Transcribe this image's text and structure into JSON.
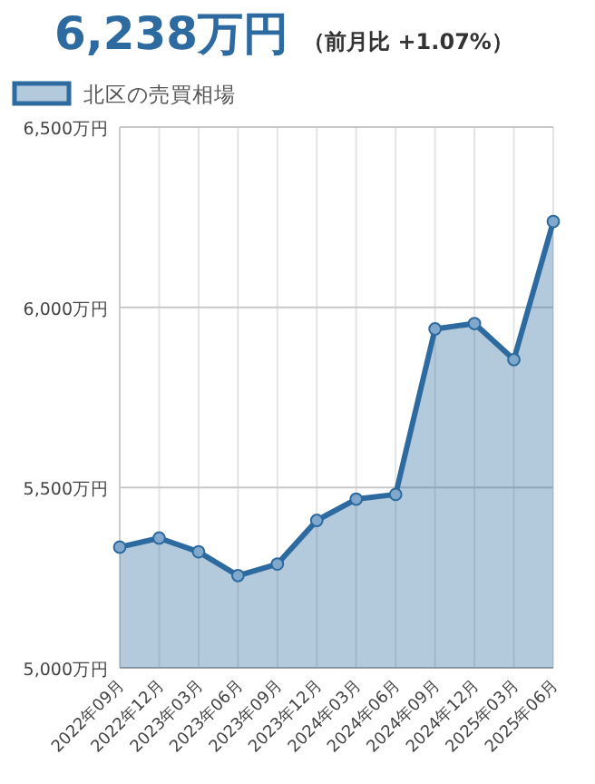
{
  "chart_data": {
    "type": "area",
    "title": "6,238万円",
    "subtitle": "（前月比 +1.07%）",
    "categories": [
      "2022年09月",
      "2022年12月",
      "2023年03月",
      "2023年06月",
      "2023年09月",
      "2023年12月",
      "2024年03月",
      "2024年06月",
      "2024年09月",
      "2024年12月",
      "2025年03月",
      "2025年06月"
    ],
    "series": [
      {
        "name": "北区の売買相場",
        "color": "#2c6a9f",
        "values": [
          5335,
          5360,
          5322,
          5256,
          5288,
          5409,
          5468,
          5481,
          5940,
          5955,
          5855,
          6238
        ]
      }
    ],
    "ylim": [
      5000,
      6500
    ],
    "yticks": [
      {
        "value": 5000,
        "label": "5,000万円"
      },
      {
        "value": 5500,
        "label": "5,500万円"
      },
      {
        "value": 6000,
        "label": "6,000万円"
      },
      {
        "value": 6500,
        "label": "6,500万円"
      }
    ],
    "grid": true,
    "legend": "top left",
    "marker": "circle"
  }
}
